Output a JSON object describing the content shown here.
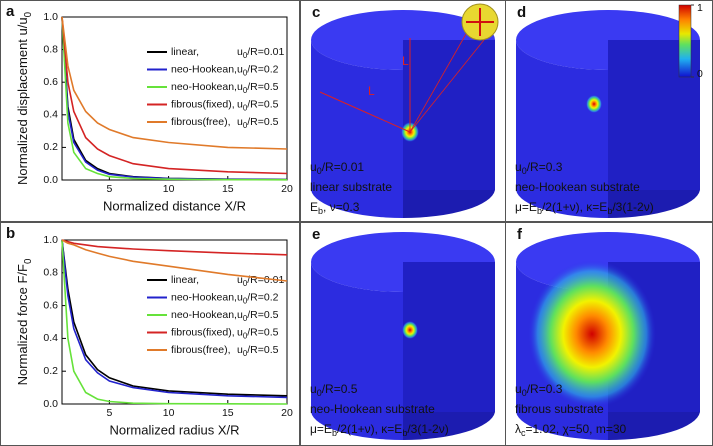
{
  "chart_data": [
    {
      "type": "line",
      "letter": "a",
      "xlabel": "Normalized distance X/R",
      "ylabel": [
        "Normalized displacement u/u",
        {
          "sub": "0"
        }
      ],
      "xlim": [
        1,
        20
      ],
      "ylim": [
        0,
        1
      ],
      "xticks": [
        5,
        10,
        15,
        20
      ],
      "yticks": [
        {
          "value": 0,
          "label": "0.0"
        },
        0.2,
        0.4,
        0.6,
        0.8,
        {
          "value": 1,
          "label": "1.0"
        }
      ],
      "x": [
        1,
        1.5,
        2,
        3,
        4,
        5,
        7,
        10,
        15,
        20
      ],
      "series": [
        {
          "name": "linear,",
          "param": [
            "u",
            {
              "sub": "0"
            },
            "/R=0.01"
          ],
          "color": "#000000",
          "values": [
            1,
            0.45,
            0.25,
            0.12,
            0.07,
            0.04,
            0.02,
            0.01,
            0.005,
            0.003
          ]
        },
        {
          "name": "neo-Hookean,",
          "param": [
            "u",
            {
              "sub": "0"
            },
            "/R=0.2"
          ],
          "color": "#2222cc",
          "values": [
            1,
            0.42,
            0.23,
            0.11,
            0.06,
            0.035,
            0.018,
            0.009,
            0.004,
            0.002
          ]
        },
        {
          "name": "neo-Hookean,",
          "param": [
            "u",
            {
              "sub": "0"
            },
            "/R=0.5"
          ],
          "color": "#66e23a",
          "values": [
            1,
            0.35,
            0.17,
            0.07,
            0.04,
            0.02,
            0.01,
            0.005,
            0.002,
            0.001
          ]
        },
        {
          "name": "fibrous(fixed),",
          "param": [
            "u",
            {
              "sub": "0"
            },
            "/R=0.5"
          ],
          "color": "#d42424",
          "values": [
            1,
            0.6,
            0.42,
            0.26,
            0.19,
            0.15,
            0.1,
            0.07,
            0.05,
            0.04
          ]
        },
        {
          "name": "fibrous(free),",
          "param": [
            "u",
            {
              "sub": "0"
            },
            "/R=0.5"
          ],
          "color": "#e07a2a",
          "values": [
            1,
            0.7,
            0.55,
            0.42,
            0.35,
            0.31,
            0.26,
            0.23,
            0.2,
            0.19
          ]
        }
      ]
    },
    {
      "type": "line",
      "letter": "b",
      "xlabel": "Normalized radius X/R",
      "ylabel": [
        "Normalized force F/F",
        {
          "sub": "0"
        }
      ],
      "xlim": [
        1,
        20
      ],
      "ylim": [
        0,
        1
      ],
      "xticks": [
        5,
        10,
        15,
        20
      ],
      "yticks": [
        {
          "value": 0,
          "label": "0.0"
        },
        0.2,
        0.4,
        0.6,
        0.8,
        {
          "value": 1,
          "label": "1.0"
        }
      ],
      "x": [
        1,
        1.5,
        2,
        3,
        4,
        5,
        7,
        10,
        15,
        20
      ],
      "series": [
        {
          "name": "linear,",
          "param": [
            "u",
            {
              "sub": "0"
            },
            "/R=0.01"
          ],
          "color": "#000000",
          "values": [
            1,
            0.7,
            0.5,
            0.3,
            0.21,
            0.16,
            0.11,
            0.08,
            0.06,
            0.05
          ]
        },
        {
          "name": "neo-Hookean,",
          "param": [
            "u",
            {
              "sub": "0"
            },
            "/R=0.2"
          ],
          "color": "#2222cc",
          "values": [
            1,
            0.66,
            0.46,
            0.27,
            0.19,
            0.14,
            0.1,
            0.07,
            0.05,
            0.04
          ]
        },
        {
          "name": "neo-Hookean,",
          "param": [
            "u",
            {
              "sub": "0"
            },
            "/R=0.5"
          ],
          "color": "#66e23a",
          "values": [
            1,
            0.4,
            0.2,
            0.07,
            0.03,
            0.015,
            0.005,
            0.002,
            0.001,
            0
          ]
        },
        {
          "name": "fibrous(fixed),",
          "param": [
            "u",
            {
              "sub": "0"
            },
            "/R=0.5"
          ],
          "color": "#d42424",
          "values": [
            1,
            0.99,
            0.98,
            0.97,
            0.96,
            0.955,
            0.945,
            0.935,
            0.92,
            0.91
          ]
        },
        {
          "name": "fibrous(free),",
          "param": [
            "u",
            {
              "sub": "0"
            },
            "/R=0.5"
          ],
          "color": "#e07a2a",
          "values": [
            1,
            0.98,
            0.97,
            0.94,
            0.92,
            0.9,
            0.87,
            0.84,
            0.79,
            0.75
          ]
        }
      ]
    }
  ],
  "render_panels": [
    {
      "letter": "c",
      "lines": [
        [
          "u",
          {
            "sub": "0"
          },
          "/R=0.01"
        ],
        [
          "linear substrate"
        ],
        [
          "E",
          {
            "sub": "b"
          },
          ", ν=0.3"
        ]
      ],
      "dimension_labels": [
        "L",
        "L"
      ]
    },
    {
      "letter": "d",
      "lines": [
        [
          "u",
          {
            "sub": "0"
          },
          "/R=0.3"
        ],
        [
          "neo-Hookean substrate"
        ],
        [
          "μ=E",
          {
            "sub": "b"
          },
          "/2(1+ν),  κ=E",
          {
            "sub": "b"
          },
          "/3(1-2ν)"
        ]
      ]
    },
    {
      "letter": "e",
      "lines": [
        [
          "u",
          {
            "sub": "0"
          },
          "/R=0.5"
        ],
        [
          "neo-Hookean substrate"
        ],
        [
          "μ=E",
          {
            "sub": "b"
          },
          "/2(1+ν),  κ=E",
          {
            "sub": "b"
          },
          "/3(1-2ν)"
        ]
      ]
    },
    {
      "letter": "f",
      "lines": [
        [
          "u",
          {
            "sub": "0"
          },
          "/R=0.3"
        ],
        [
          "fibrous substrate"
        ],
        [
          "λ",
          {
            "sub": "c"
          },
          "=1.02, χ=50, m=30"
        ]
      ]
    }
  ],
  "colorbar": {
    "ticks": [
      1,
      0
    ]
  }
}
